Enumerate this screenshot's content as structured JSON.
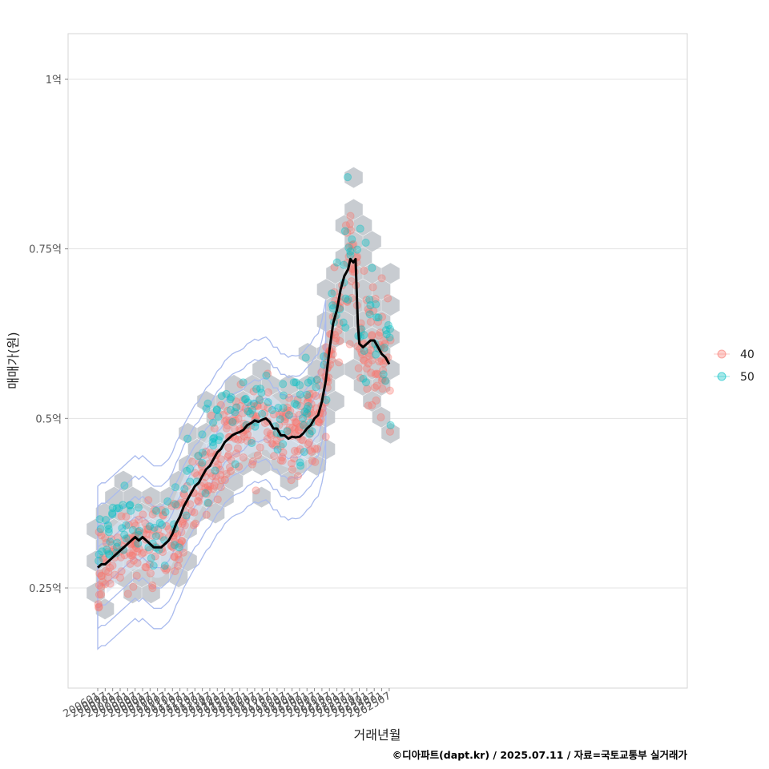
{
  "chart_data": {
    "type": "scatter",
    "xlabel": "거래년월",
    "ylabel": "매매가(원)",
    "caption": "©디아파트(dapt.kr) / 2025.07.11 / 자료=국토교통부 실거래가",
    "y_ticks": [
      {
        "value": 0.25,
        "label": "0.25억"
      },
      {
        "value": 0.5,
        "label": "0.5억"
      },
      {
        "value": 0.75,
        "label": "0.75억"
      },
      {
        "value": 1.0,
        "label": "1억"
      }
    ],
    "ylim": [
      0.1,
      1.07
    ],
    "x_ticks": [
      "200601",
      "200607",
      "200701",
      "200707",
      "200801",
      "200807",
      "200901",
      "200907",
      "201001",
      "201007",
      "201101",
      "201107",
      "201201",
      "201207",
      "201301",
      "201307",
      "201401",
      "201407",
      "201501",
      "201507",
      "201601",
      "201607",
      "201701",
      "201707",
      "201801",
      "201807",
      "201901",
      "201907",
      "202001",
      "202007",
      "202101",
      "202107",
      "202201",
      "202207",
      "202301",
      "202307",
      "202401",
      "202407",
      "202501",
      "202507"
    ],
    "grid": "horizontal",
    "legend_position": "right",
    "legend": [
      {
        "name": "40",
        "color": "#f8766d"
      },
      {
        "name": "50",
        "color": "#00bfc4"
      }
    ],
    "colors": {
      "hexbin": "#c2c7cc",
      "contour": "#aabbee",
      "trend": "#000000"
    },
    "trend_line": {
      "x": [
        2006.0,
        2006.25,
        2006.5,
        2006.75,
        2007.0,
        2007.25,
        2007.5,
        2007.75,
        2008.0,
        2008.25,
        2008.5,
        2008.75,
        2009.0,
        2009.25,
        2009.5,
        2009.75,
        2010.0,
        2010.25,
        2010.5,
        2010.75,
        2011.0,
        2011.25,
        2011.5,
        2011.75,
        2012.0,
        2012.25,
        2012.5,
        2012.75,
        2013.0,
        2013.25,
        2013.5,
        2013.75,
        2014.0,
        2014.25,
        2014.5,
        2014.75,
        2015.0,
        2015.25,
        2015.5,
        2015.75,
        2016.0,
        2016.25,
        2016.5,
        2016.75,
        2017.0,
        2017.25,
        2017.5,
        2017.75,
        2018.0,
        2018.25,
        2018.5,
        2018.75,
        2019.0,
        2019.25,
        2019.5,
        2019.75,
        2020.0,
        2020.25,
        2020.5,
        2020.75,
        2021.0,
        2021.25,
        2021.5,
        2021.75,
        2022.0,
        2022.25,
        2022.5,
        2022.75,
        2022.9,
        2023.1,
        2023.25,
        2023.4,
        2023.5,
        2023.75,
        2024.0,
        2024.25,
        2024.5,
        2024.75,
        2025.0,
        2025.25,
        2025.5
      ],
      "y": [
        0.28,
        0.285,
        0.285,
        0.29,
        0.295,
        0.3,
        0.305,
        0.31,
        0.315,
        0.32,
        0.325,
        0.32,
        0.325,
        0.32,
        0.315,
        0.31,
        0.31,
        0.31,
        0.315,
        0.32,
        0.33,
        0.345,
        0.355,
        0.37,
        0.38,
        0.39,
        0.4,
        0.405,
        0.415,
        0.425,
        0.43,
        0.44,
        0.45,
        0.455,
        0.465,
        0.47,
        0.475,
        0.478,
        0.48,
        0.483,
        0.49,
        0.493,
        0.497,
        0.495,
        0.498,
        0.5,
        0.495,
        0.485,
        0.485,
        0.475,
        0.475,
        0.47,
        0.473,
        0.472,
        0.473,
        0.478,
        0.485,
        0.49,
        0.5,
        0.505,
        0.525,
        0.555,
        0.6,
        0.64,
        0.66,
        0.69,
        0.71,
        0.72,
        0.735,
        0.73,
        0.735,
        0.64,
        0.61,
        0.605,
        0.61,
        0.615,
        0.615,
        0.605,
        0.595,
        0.59,
        0.58
      ]
    },
    "series": [
      {
        "name": "40",
        "count": 520
      },
      {
        "name": "50",
        "count": 200
      }
    ]
  }
}
